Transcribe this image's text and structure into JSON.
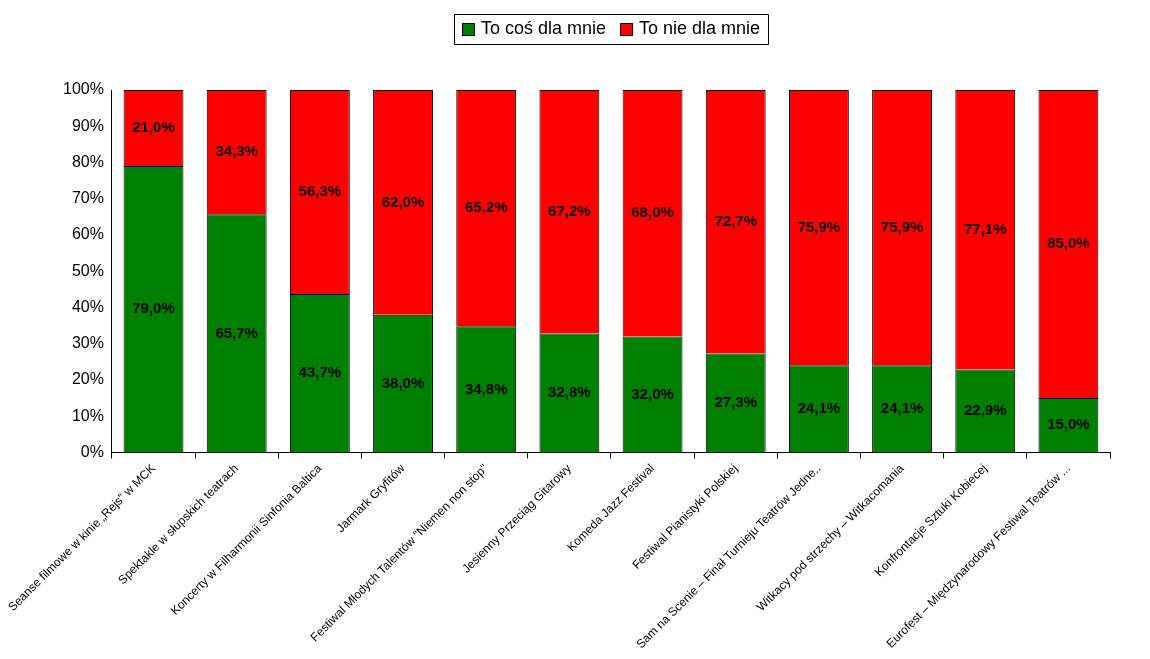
{
  "chart_data": {
    "type": "bar",
    "stacked": true,
    "legend": "top",
    "grid": false,
    "categories": [
      "Seanse filmowe w kinie „Rejs” w MCK",
      "Spektakle w słupskich teatrach",
      "Koncerty w Filharmonii Sinfonia Baltica",
      "Jarmark Gryfitów",
      "Festiwal Młodych Talentów \"Niemen non stop\"",
      "Jesienny Przeciąg Gitarowy",
      "Komeda Jazz Festival",
      "Festiwal Pianistyki Polskiej",
      "Sam na Scenie – Finał Turnieju Teatrów Jedne..",
      "Witkacy pod strzechy – Witkacomania",
      "Konfrontacje Sztuki Kobiecej",
      "Eurofest – Międzynarodowy Festiwal Teatrów ..."
    ],
    "series": [
      {
        "name": "To coś dla mnie",
        "color": "#008000",
        "values": [
          79.0,
          65.7,
          43.7,
          38.0,
          34.8,
          32.8,
          32.0,
          27.3,
          24.1,
          24.1,
          22.9,
          15.0
        ],
        "value_labels": [
          "79,0%",
          "65,7%",
          "43,7%",
          "38,0%",
          "34,8%",
          "32,8%",
          "32,0%",
          "27,3%",
          "24,1%",
          "24,1%",
          "22,9%",
          "15,0%"
        ]
      },
      {
        "name": "To nie dla mnie",
        "color": "#ff0000",
        "values": [
          21.0,
          34.3,
          56.3,
          62.0,
          65.2,
          67.2,
          68.0,
          72.7,
          75.9,
          75.9,
          77.1,
          85.0
        ],
        "value_labels": [
          "21,0%",
          "34,3%",
          "56,3%",
          "62,0%",
          "65,2%",
          "67,2%",
          "68,0%",
          "72,7%",
          "75,9%",
          "75,9%",
          "77,1%",
          "85,0%"
        ]
      }
    ],
    "ylim": [
      0,
      100
    ],
    "yticks": [
      {
        "value": 0,
        "label": "0%"
      },
      {
        "value": 10,
        "label": "10%"
      },
      {
        "value": 20,
        "label": "20%"
      },
      {
        "value": 30,
        "label": "30%"
      },
      {
        "value": 40,
        "label": "40%"
      },
      {
        "value": 50,
        "label": "50%"
      },
      {
        "value": 60,
        "label": "60%"
      },
      {
        "value": 70,
        "label": "70%"
      },
      {
        "value": 80,
        "label": "80%"
      },
      {
        "value": 90,
        "label": "90%"
      },
      {
        "value": 100,
        "label": "100%"
      }
    ]
  }
}
